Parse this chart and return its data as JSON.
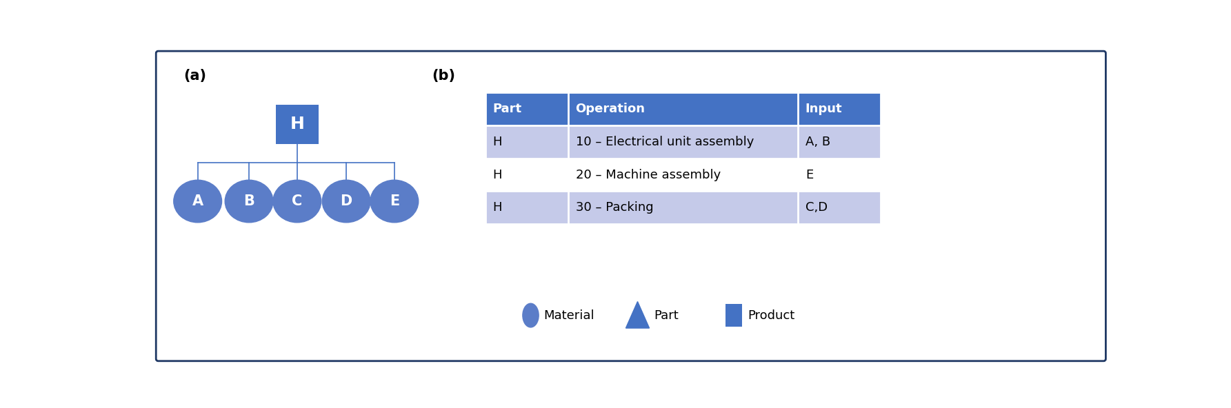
{
  "panel_a_label": "(a)",
  "panel_b_label": "(b)",
  "square_label": "H",
  "square_color": "#4472C4",
  "circle_color": "#5B7DC8",
  "line_color": "#4472C4",
  "border_color": "#1F3864",
  "background_color": "#FFFFFF",
  "text_color_white": "#FFFFFF",
  "text_color_black": "#000000",
  "table_header_color": "#4472C4",
  "table_row1_color": "#C5CAE9",
  "table_row2_color": "#FFFFFF",
  "table_row3_color": "#C5CAE9",
  "table_headers": [
    "Part",
    "Operation",
    "Input"
  ],
  "table_rows": [
    [
      "H",
      "10 – Electrical unit assembly",
      "A, B"
    ],
    [
      "H",
      "20 – Machine assembly",
      "E"
    ],
    [
      "H",
      "30 – Packing",
      "C,D"
    ]
  ],
  "circle_labels": [
    "A",
    "B",
    "C",
    "D",
    "E"
  ],
  "legend_labels": [
    "Material",
    "Part",
    "Product"
  ]
}
